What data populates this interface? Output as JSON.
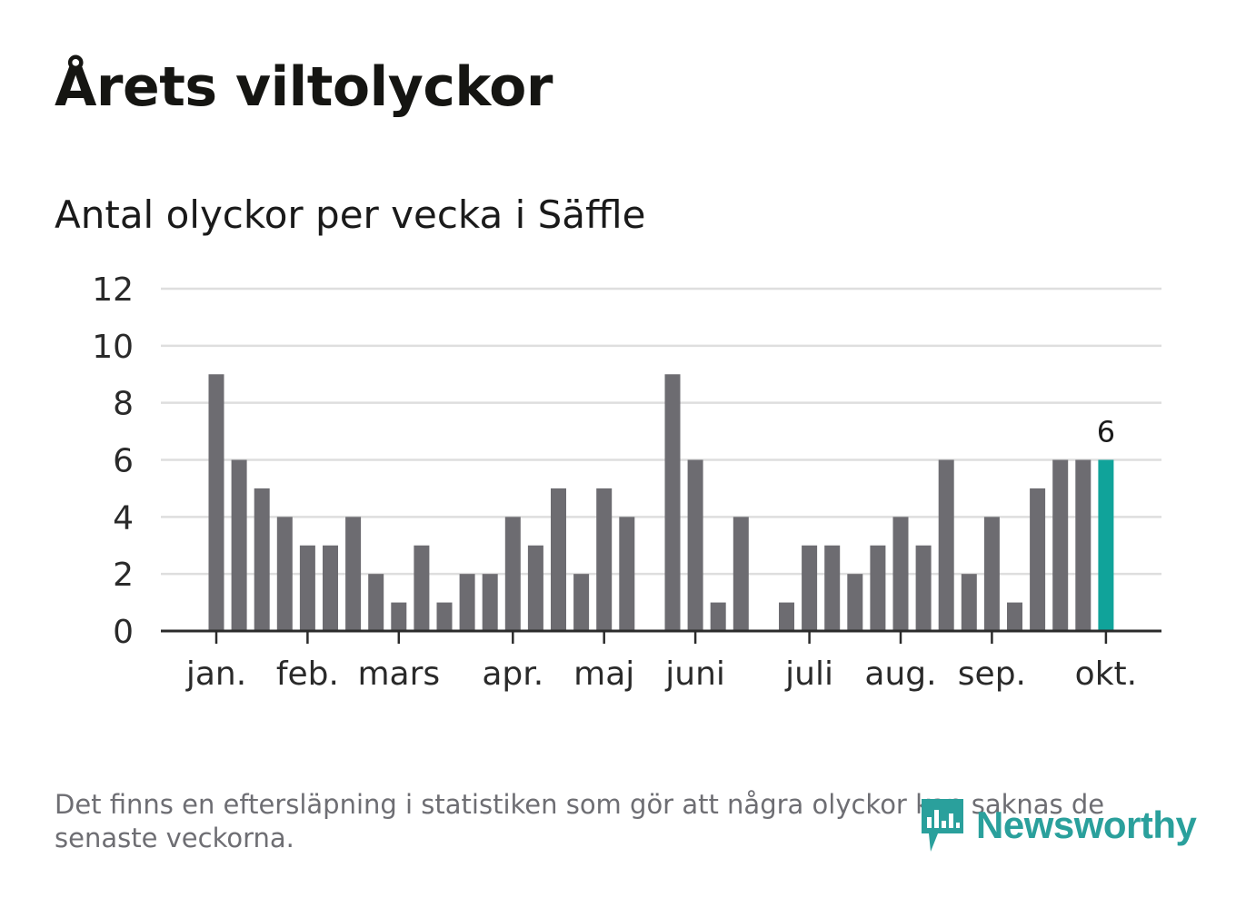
{
  "title": "Årets viltolyckor",
  "subtitle": "Antal olyckor per vecka i Säffle",
  "footnote": "Det finns en eftersläpning i statistiken som gör att några olyckor kan saknas de senaste veckorna.",
  "brand": {
    "name": "Newsworthy",
    "icon": "newsworthy-logo-icon"
  },
  "colors": {
    "bar": "#6d6c71",
    "highlight": "#10a39a",
    "grid": "#dedede",
    "axis": "#2b2b2b",
    "brand": "#2aa09c"
  },
  "chart_data": {
    "type": "bar",
    "title": "Antal olyckor per vecka i Säffle",
    "xlabel": "",
    "ylabel": "",
    "ylim": [
      0,
      12
    ],
    "yticks": [
      0,
      2,
      4,
      6,
      8,
      10,
      12
    ],
    "grid": true,
    "weeks": [
      1,
      2,
      3,
      4,
      5,
      6,
      7,
      8,
      9,
      10,
      11,
      12,
      13,
      14,
      15,
      16,
      17,
      18,
      19,
      20,
      21,
      22,
      23,
      24,
      25,
      26,
      27,
      28,
      29,
      30,
      31,
      32,
      33,
      34,
      35,
      36,
      37,
      38,
      39,
      40
    ],
    "values": [
      9,
      6,
      5,
      4,
      3,
      3,
      4,
      2,
      1,
      3,
      1,
      2,
      2,
      4,
      3,
      5,
      2,
      5,
      4,
      0,
      9,
      6,
      1,
      4,
      0,
      1,
      3,
      3,
      2,
      3,
      4,
      3,
      6,
      2,
      4,
      1,
      5,
      6,
      6,
      6
    ],
    "highlight_index": 39,
    "highlight_label": "6",
    "month_ticks": [
      {
        "label": "jan.",
        "week_index": 0
      },
      {
        "label": "feb.",
        "week_index": 4
      },
      {
        "label": "mars",
        "week_index": 8
      },
      {
        "label": "apr.",
        "week_index": 13
      },
      {
        "label": "maj",
        "week_index": 17
      },
      {
        "label": "juni",
        "week_index": 21
      },
      {
        "label": "juli",
        "week_index": 26
      },
      {
        "label": "aug.",
        "week_index": 30
      },
      {
        "label": "sep.",
        "week_index": 34
      },
      {
        "label": "okt.",
        "week_index": 39
      }
    ]
  }
}
